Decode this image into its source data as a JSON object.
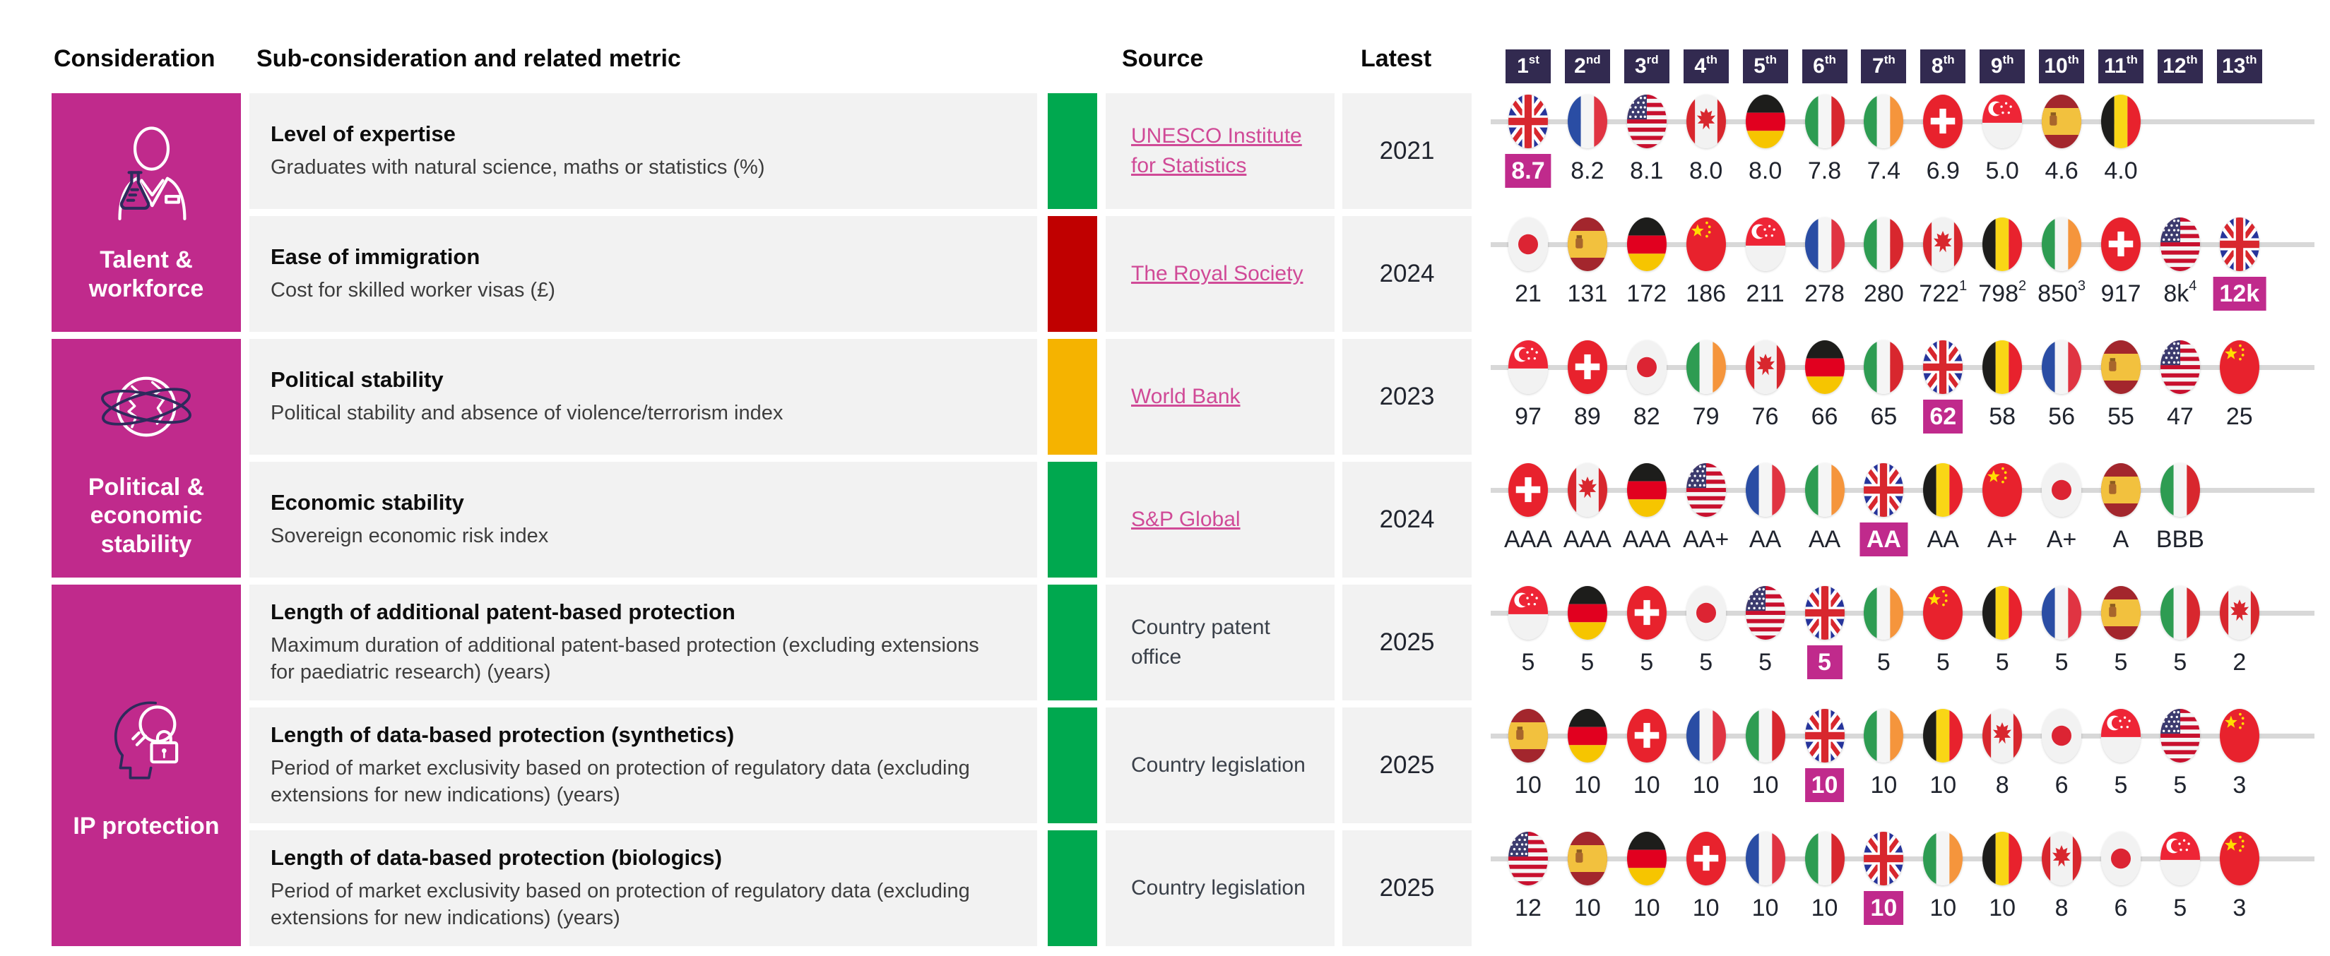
{
  "colors": {
    "magenta": "#C02A8C",
    "badge_navy": "#322A50",
    "row_bg": "#F2F2F2",
    "rag_green": "#00A84F",
    "rag_red": "#C00000",
    "rag_amber": "#F5B300",
    "link_pink": "#D04A97",
    "line_gray": "#D8D8D8",
    "text_dark": "#20242E"
  },
  "header": {
    "consideration": "Consideration",
    "sub_consideration": "Sub-consideration and related metric",
    "source": "Source",
    "latest": "Latest",
    "ranks": [
      {
        "num": "1",
        "suffix": "st"
      },
      {
        "num": "2",
        "suffix": "nd"
      },
      {
        "num": "3",
        "suffix": "rd"
      },
      {
        "num": "4",
        "suffix": "th"
      },
      {
        "num": "5",
        "suffix": "th"
      },
      {
        "num": "6",
        "suffix": "th"
      },
      {
        "num": "7",
        "suffix": "th"
      },
      {
        "num": "8",
        "suffix": "th"
      },
      {
        "num": "9",
        "suffix": "th"
      },
      {
        "num": "10",
        "suffix": "th"
      },
      {
        "num": "11",
        "suffix": "th"
      },
      {
        "num": "12",
        "suffix": "th"
      },
      {
        "num": "13",
        "suffix": "th"
      }
    ]
  },
  "considerations": [
    {
      "label": "Talent & workforce",
      "icon": "scientist-flask-icon",
      "row_span": [
        0,
        1
      ]
    },
    {
      "label": "Political & economic stability",
      "icon": "globe-orbit-icon",
      "row_span": [
        2,
        3
      ]
    },
    {
      "label": "IP protection",
      "icon": "head-bulb-lock-icon",
      "row_span": [
        4,
        6
      ]
    }
  ],
  "chart_data": {
    "type": "table",
    "columns": [
      "Consideration",
      "Sub-consideration and related metric",
      "Source",
      "Latest",
      "1st",
      "2nd",
      "3rd",
      "4th",
      "5th",
      "6th",
      "7th",
      "8th",
      "9th",
      "10th",
      "11th",
      "12th",
      "13th"
    ],
    "highlighted_country": "United Kingdom",
    "rows": [
      {
        "consideration": "Talent & workforce",
        "metric": "Level of expertise",
        "description": "Graduates with natural science, maths or statistics (%)",
        "rag": "green",
        "source": "UNESCO Institute for Statistics",
        "source_is_link": true,
        "latest": "2021",
        "entries": [
          {
            "country": "United Kingdom",
            "value": "8.7",
            "highlight": true
          },
          {
            "country": "France",
            "value": "8.2"
          },
          {
            "country": "United States",
            "value": "8.1"
          },
          {
            "country": "Canada",
            "value": "8.0"
          },
          {
            "country": "Germany",
            "value": "8.0"
          },
          {
            "country": "Italy",
            "value": "7.8"
          },
          {
            "country": "Ireland",
            "value": "7.4"
          },
          {
            "country": "Switzerland",
            "value": "6.9"
          },
          {
            "country": "Singapore",
            "value": "5.0"
          },
          {
            "country": "Spain",
            "value": "4.6"
          },
          {
            "country": "Belgium",
            "value": "4.0"
          }
        ]
      },
      {
        "consideration": "Talent & workforce",
        "metric": "Ease of immigration",
        "description": "Cost for skilled worker visas (£)",
        "rag": "red",
        "source": "The Royal Society",
        "source_is_link": true,
        "latest": "2024",
        "entries": [
          {
            "country": "Japan",
            "value": "21"
          },
          {
            "country": "Spain",
            "value": "131"
          },
          {
            "country": "Germany",
            "value": "172"
          },
          {
            "country": "China",
            "value": "186"
          },
          {
            "country": "Singapore",
            "value": "211"
          },
          {
            "country": "France",
            "value": "278"
          },
          {
            "country": "Italy",
            "value": "280"
          },
          {
            "country": "Canada",
            "value": "722",
            "footnote": "1"
          },
          {
            "country": "Belgium",
            "value": "798",
            "footnote": "2"
          },
          {
            "country": "Ireland",
            "value": "850",
            "footnote": "3"
          },
          {
            "country": "Switzerland",
            "value": "917"
          },
          {
            "country": "United States",
            "value": "8k",
            "footnote": "4"
          },
          {
            "country": "United Kingdom",
            "value": "12k",
            "highlight": true
          }
        ]
      },
      {
        "consideration": "Political & economic stability",
        "metric": "Political stability",
        "description": "Political stability and absence of violence/terrorism index",
        "rag": "amber",
        "source": "World Bank",
        "source_is_link": true,
        "latest": "2023",
        "entries": [
          {
            "country": "Singapore",
            "value": "97"
          },
          {
            "country": "Switzerland",
            "value": "89"
          },
          {
            "country": "Japan",
            "value": "82"
          },
          {
            "country": "Ireland",
            "value": "79"
          },
          {
            "country": "Canada",
            "value": "76"
          },
          {
            "country": "Germany",
            "value": "66"
          },
          {
            "country": "Italy",
            "value": "65"
          },
          {
            "country": "United Kingdom",
            "value": "62",
            "highlight": true
          },
          {
            "country": "Belgium",
            "value": "58"
          },
          {
            "country": "France",
            "value": "56"
          },
          {
            "country": "Spain",
            "value": "55"
          },
          {
            "country": "United States",
            "value": "47"
          },
          {
            "country": "China",
            "value": "25"
          }
        ]
      },
      {
        "consideration": "Political & economic stability",
        "metric": "Economic stability",
        "description": "Sovereign economic risk index",
        "rag": "green",
        "source": "S&P Global",
        "source_is_link": true,
        "latest": "2024",
        "entries": [
          {
            "country": "Switzerland",
            "value": "AAA"
          },
          {
            "country": "Canada",
            "value": "AAA"
          },
          {
            "country": "Germany",
            "value": "AAA"
          },
          {
            "country": "United States",
            "value": "AA+"
          },
          {
            "country": "France",
            "value": "AA"
          },
          {
            "country": "Ireland",
            "value": "AA"
          },
          {
            "country": "United Kingdom",
            "value": "AA",
            "highlight": true
          },
          {
            "country": "Belgium",
            "value": "AA"
          },
          {
            "country": "China",
            "value": "A+"
          },
          {
            "country": "Japan",
            "value": "A+"
          },
          {
            "country": "Spain",
            "value": "A"
          },
          {
            "country": "Italy",
            "value": "BBB"
          }
        ]
      },
      {
        "consideration": "IP protection",
        "metric": "Length of additional patent-based protection",
        "description": "Maximum duration of additional patent-based protection (excluding extensions for paediatric research) (years)",
        "rag": "green",
        "source": "Country patent office",
        "source_is_link": false,
        "latest": "2025",
        "entries": [
          {
            "country": "Singapore",
            "value": "5"
          },
          {
            "country": "Germany",
            "value": "5"
          },
          {
            "country": "Switzerland",
            "value": "5"
          },
          {
            "country": "Japan",
            "value": "5"
          },
          {
            "country": "United States",
            "value": "5"
          },
          {
            "country": "United Kingdom",
            "value": "5",
            "highlight": true
          },
          {
            "country": "Ireland",
            "value": "5"
          },
          {
            "country": "China",
            "value": "5"
          },
          {
            "country": "Belgium",
            "value": "5"
          },
          {
            "country": "France",
            "value": "5"
          },
          {
            "country": "Spain",
            "value": "5"
          },
          {
            "country": "Italy",
            "value": "5"
          },
          {
            "country": "Canada",
            "value": "2"
          }
        ]
      },
      {
        "consideration": "IP protection",
        "metric": "Length of data-based protection (synthetics)",
        "description": "Period of market exclusivity based on protection of regulatory data (excluding extensions for new indications) (years)",
        "rag": "green",
        "source": "Country legislation",
        "source_is_link": false,
        "latest": "2025",
        "entries": [
          {
            "country": "Spain",
            "value": "10"
          },
          {
            "country": "Germany",
            "value": "10"
          },
          {
            "country": "Switzerland",
            "value": "10"
          },
          {
            "country": "France",
            "value": "10"
          },
          {
            "country": "Italy",
            "value": "10"
          },
          {
            "country": "United Kingdom",
            "value": "10",
            "highlight": true
          },
          {
            "country": "Ireland",
            "value": "10"
          },
          {
            "country": "Belgium",
            "value": "10"
          },
          {
            "country": "Canada",
            "value": "8"
          },
          {
            "country": "Japan",
            "value": "6"
          },
          {
            "country": "Singapore",
            "value": "5"
          },
          {
            "country": "United States",
            "value": "5"
          },
          {
            "country": "China",
            "value": "3"
          }
        ]
      },
      {
        "consideration": "IP protection",
        "metric": "Length of data-based protection (biologics)",
        "description": "Period of market exclusivity based on protection of regulatory data (excluding extensions for new indications) (years)",
        "rag": "green",
        "source": "Country legislation",
        "source_is_link": false,
        "latest": "2025",
        "entries": [
          {
            "country": "United States",
            "value": "12"
          },
          {
            "country": "Spain",
            "value": "10"
          },
          {
            "country": "Germany",
            "value": "10"
          },
          {
            "country": "Switzerland",
            "value": "10"
          },
          {
            "country": "France",
            "value": "10"
          },
          {
            "country": "Italy",
            "value": "10"
          },
          {
            "country": "United Kingdom",
            "value": "10",
            "highlight": true
          },
          {
            "country": "Ireland",
            "value": "10"
          },
          {
            "country": "Belgium",
            "value": "10"
          },
          {
            "country": "Canada",
            "value": "8"
          },
          {
            "country": "Japan",
            "value": "6"
          },
          {
            "country": "Singapore",
            "value": "5"
          },
          {
            "country": "China",
            "value": "3"
          }
        ]
      }
    ]
  }
}
